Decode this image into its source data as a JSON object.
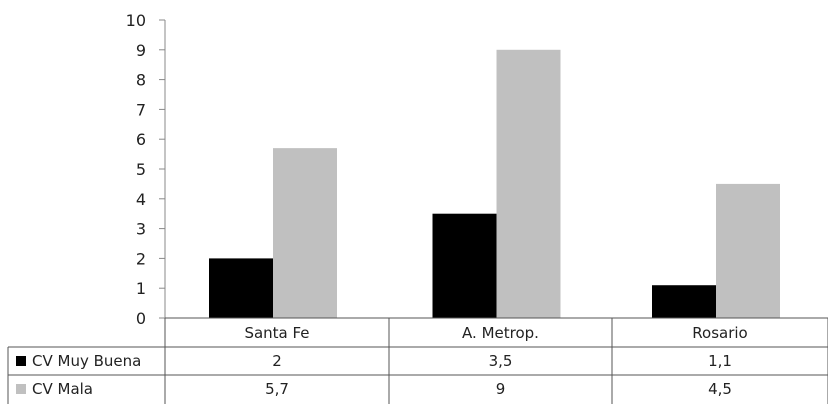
{
  "chart_data": {
    "type": "bar",
    "categories": [
      "Santa Fe",
      "A. Metrop.",
      "Rosario"
    ],
    "series": [
      {
        "name": "CV Muy Buena",
        "values": [
          2,
          3.5,
          1.1
        ],
        "labels": [
          "2",
          "3,5",
          "1,1"
        ],
        "color": "#000000"
      },
      {
        "name": "CV Mala",
        "values": [
          5.7,
          9,
          4.5
        ],
        "labels": [
          "5,7",
          "9",
          "4,5"
        ],
        "color": "#c0c0c0"
      }
    ],
    "ylim": [
      0,
      10
    ],
    "yticks": [
      "0",
      "1",
      "2",
      "3",
      "4",
      "5",
      "6",
      "7",
      "8",
      "9",
      "10"
    ],
    "grid": false,
    "legend": "data-table-left"
  }
}
